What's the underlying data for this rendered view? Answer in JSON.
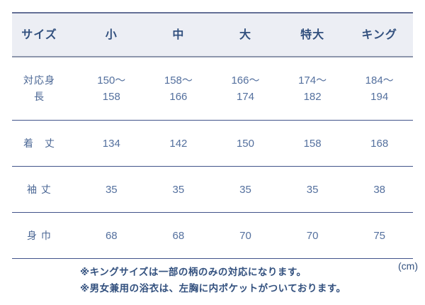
{
  "chart_data": {
    "type": "table",
    "title": "浴衣サイズ表 (yukata size chart)",
    "unit": "(cm)",
    "corner_label": "サイズ",
    "columns": [
      "小",
      "中",
      "大",
      "特大",
      "キング"
    ],
    "rows": [
      {
        "label": "対応身\n長",
        "values": [
          "150〜\n158",
          "158〜\n166",
          "166〜\n174",
          "174〜\n182",
          "184〜\n194"
        ]
      },
      {
        "label": "着　丈",
        "values": [
          "134",
          "142",
          "150",
          "158",
          "168"
        ]
      },
      {
        "label": "袖 丈",
        "values": [
          "35",
          "35",
          "35",
          "35",
          "38"
        ]
      },
      {
        "label": "身 巾",
        "values": [
          "68",
          "68",
          "70",
          "70",
          "75"
        ]
      }
    ],
    "notes": [
      "※キングサイズは一部の柄のみの対応になります。",
      "※男女兼用の浴衣は、左胸に内ポケットがついております。"
    ],
    "layout": {
      "grid": "horizontal-rules-only",
      "legend": "none"
    }
  },
  "colors": {
    "header_bg": "#eceef4",
    "header_text": "#32507e",
    "body_text": "#54709e",
    "label_text": "#4a6694",
    "rule_inner": "#41538a",
    "rule_header_bottom": "#8d96ac",
    "rule_top": "#646f96",
    "page_bg": "#ffffff"
  }
}
